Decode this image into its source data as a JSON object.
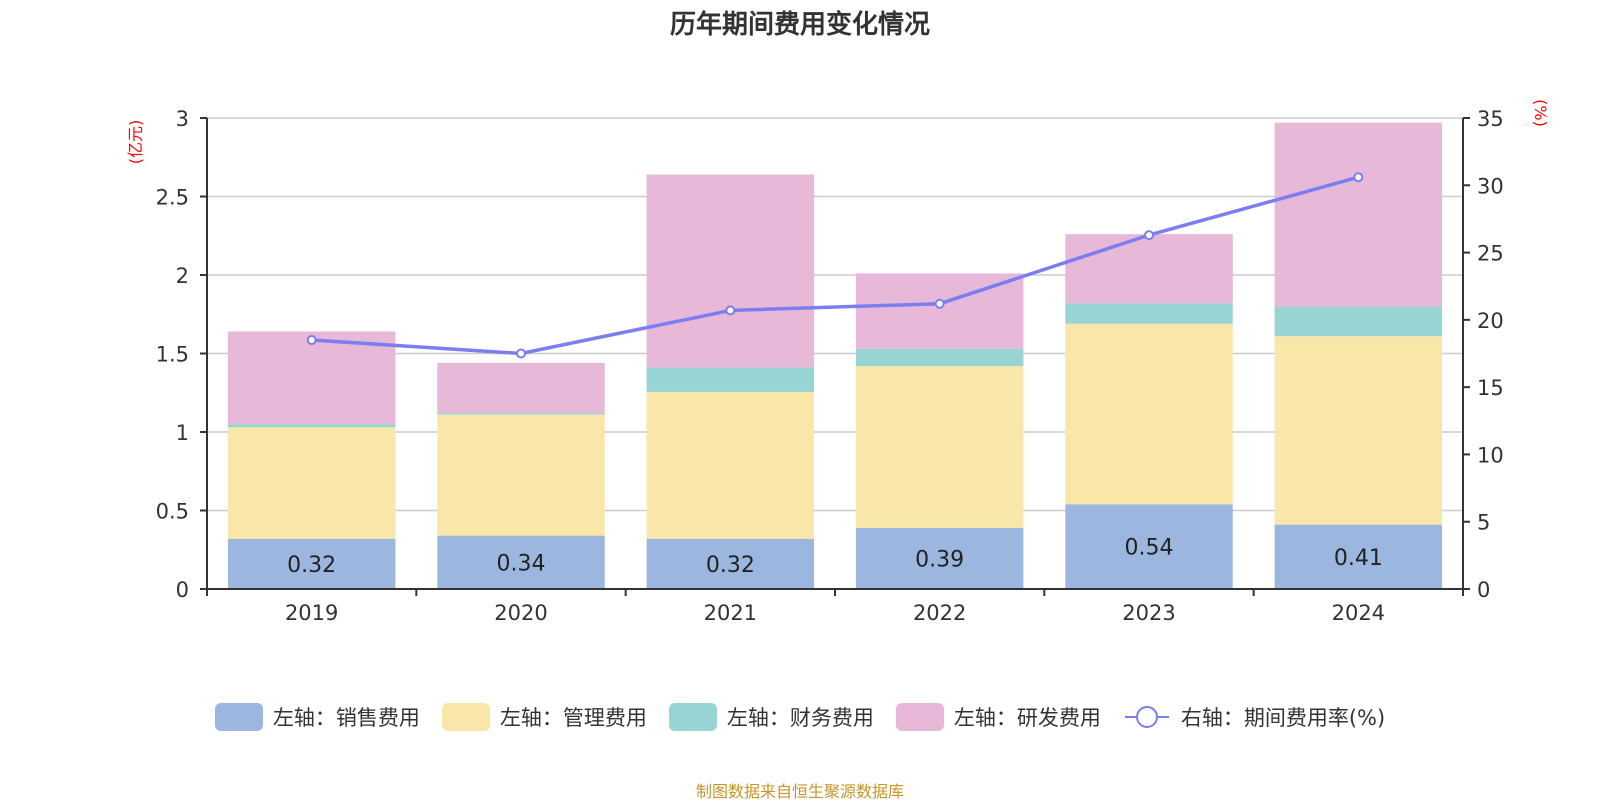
{
  "chart_data": {
    "type": "bar",
    "stacked": true,
    "title": "历年期间费用变化情况",
    "categories": [
      "2019",
      "2020",
      "2021",
      "2022",
      "2023",
      "2024"
    ],
    "series": [
      {
        "name": "左轴：销售费用",
        "axis": "left",
        "color": "#9bb7e0",
        "values": [
          0.32,
          0.34,
          0.32,
          0.39,
          0.54,
          0.41
        ],
        "labels": [
          "0.32",
          "0.34",
          "0.32",
          "0.39",
          "0.54",
          "0.41"
        ]
      },
      {
        "name": "左轴：管理费用",
        "axis": "left",
        "color": "#f8e7a9",
        "values": [
          0.71,
          0.77,
          0.935,
          1.03,
          1.15,
          1.2
        ]
      },
      {
        "name": "左轴：财务费用",
        "axis": "left",
        "color": "#98d4d4",
        "values": [
          0.02,
          0.01,
          0.155,
          0.11,
          0.13,
          0.19
        ]
      },
      {
        "name": "左轴：研发费用",
        "axis": "left",
        "color": "#e7b8d8",
        "values": [
          0.59,
          0.32,
          1.23,
          0.48,
          0.44,
          1.17
        ]
      },
      {
        "name": "右轴：期间费用率(%)",
        "axis": "right",
        "type": "line",
        "color": "#7b7ef0",
        "values": [
          18.5,
          17.5,
          20.7,
          21.2,
          26.3,
          30.6
        ]
      }
    ],
    "left_axis": {
      "label": "(亿元)",
      "ylim": [
        0,
        3
      ],
      "ticks": [
        "0",
        "0.5",
        "1",
        "1.5",
        "2",
        "2.5",
        "3"
      ],
      "tick_values": [
        0,
        0.5,
        1,
        1.5,
        2,
        2.5,
        3
      ]
    },
    "right_axis": {
      "label": "(%)",
      "ylim": [
        0,
        35
      ],
      "ticks": [
        "0",
        "5",
        "10",
        "15",
        "20",
        "25",
        "30",
        "35"
      ],
      "tick_values": [
        0,
        5,
        10,
        15,
        20,
        25,
        30,
        35
      ]
    },
    "grid": true,
    "legend_position": "bottom"
  },
  "source_note": "制图数据来自恒生聚源数据库"
}
